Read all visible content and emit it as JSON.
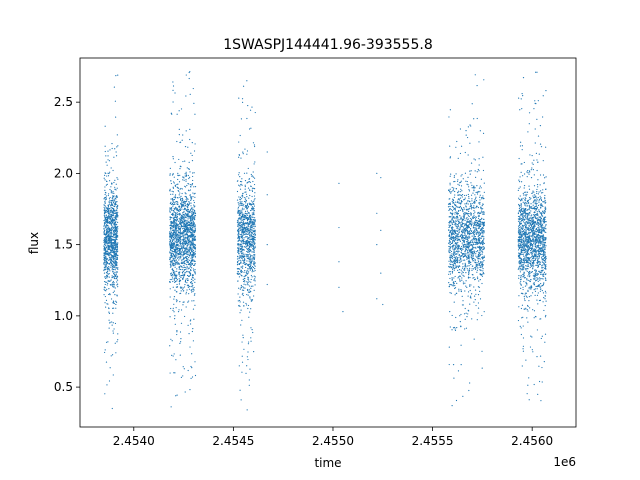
{
  "chart_data": {
    "type": "scatter",
    "title": "1SWASPJ144441.96-393555.8",
    "xlabel": "time",
    "ylabel": "flux",
    "x_offset_label": "1e6",
    "xlim": [
      2.45373,
      2.45622
    ],
    "ylim": [
      0.22,
      2.81
    ],
    "x_ticks": [
      2.454,
      2.4545,
      2.455,
      2.4555,
      2.456
    ],
    "x_tick_labels": [
      "2.4540",
      "2.4545",
      "2.4550",
      "2.4555",
      "2.4560"
    ],
    "y_ticks": [
      0.5,
      1.0,
      1.5,
      2.0,
      2.5
    ],
    "y_tick_labels": [
      "0.5",
      "1.0",
      "1.5",
      "2.0",
      "2.5"
    ],
    "grid": false,
    "marker_color": "#1f77b4",
    "series": [
      {
        "clusters": [
          {
            "x_start": 2.45385,
            "x_end": 2.45392,
            "flux_center": 1.55,
            "flux_min": 0.35,
            "flux_max": 2.72,
            "points": 1100
          },
          {
            "x_start": 2.45418,
            "x_end": 2.45431,
            "flux_center": 1.55,
            "flux_min": 0.34,
            "flux_max": 2.72,
            "points": 1700
          },
          {
            "x_start": 2.45452,
            "x_end": 2.45461,
            "flux_center": 1.55,
            "flux_min": 0.34,
            "flux_max": 2.67,
            "points": 1000
          },
          {
            "x_start": 2.45558,
            "x_end": 2.45576,
            "flux_center": 1.55,
            "flux_min": 0.37,
            "flux_max": 2.71,
            "points": 1500
          },
          {
            "x_start": 2.45593,
            "x_end": 2.45607,
            "flux_center": 1.55,
            "flux_min": 0.34,
            "flux_max": 2.71,
            "points": 1600
          }
        ],
        "sparse_points": [
          {
            "x": 2.45467,
            "y": 2.15
          },
          {
            "x": 2.45467,
            "y": 1.85
          },
          {
            "x": 2.45467,
            "y": 1.5
          },
          {
            "x": 2.45467,
            "y": 1.22
          },
          {
            "x": 2.45503,
            "y": 1.93
          },
          {
            "x": 2.45503,
            "y": 1.62
          },
          {
            "x": 2.45503,
            "y": 1.38
          },
          {
            "x": 2.45503,
            "y": 1.2
          },
          {
            "x": 2.45505,
            "y": 1.03
          },
          {
            "x": 2.45522,
            "y": 2.0
          },
          {
            "x": 2.45522,
            "y": 1.72
          },
          {
            "x": 2.45522,
            "y": 1.5
          },
          {
            "x": 2.45522,
            "y": 1.12
          },
          {
            "x": 2.45524,
            "y": 1.97
          },
          {
            "x": 2.45524,
            "y": 1.6
          },
          {
            "x": 2.45524,
            "y": 1.3
          },
          {
            "x": 2.45525,
            "y": 1.08
          }
        ]
      }
    ]
  }
}
